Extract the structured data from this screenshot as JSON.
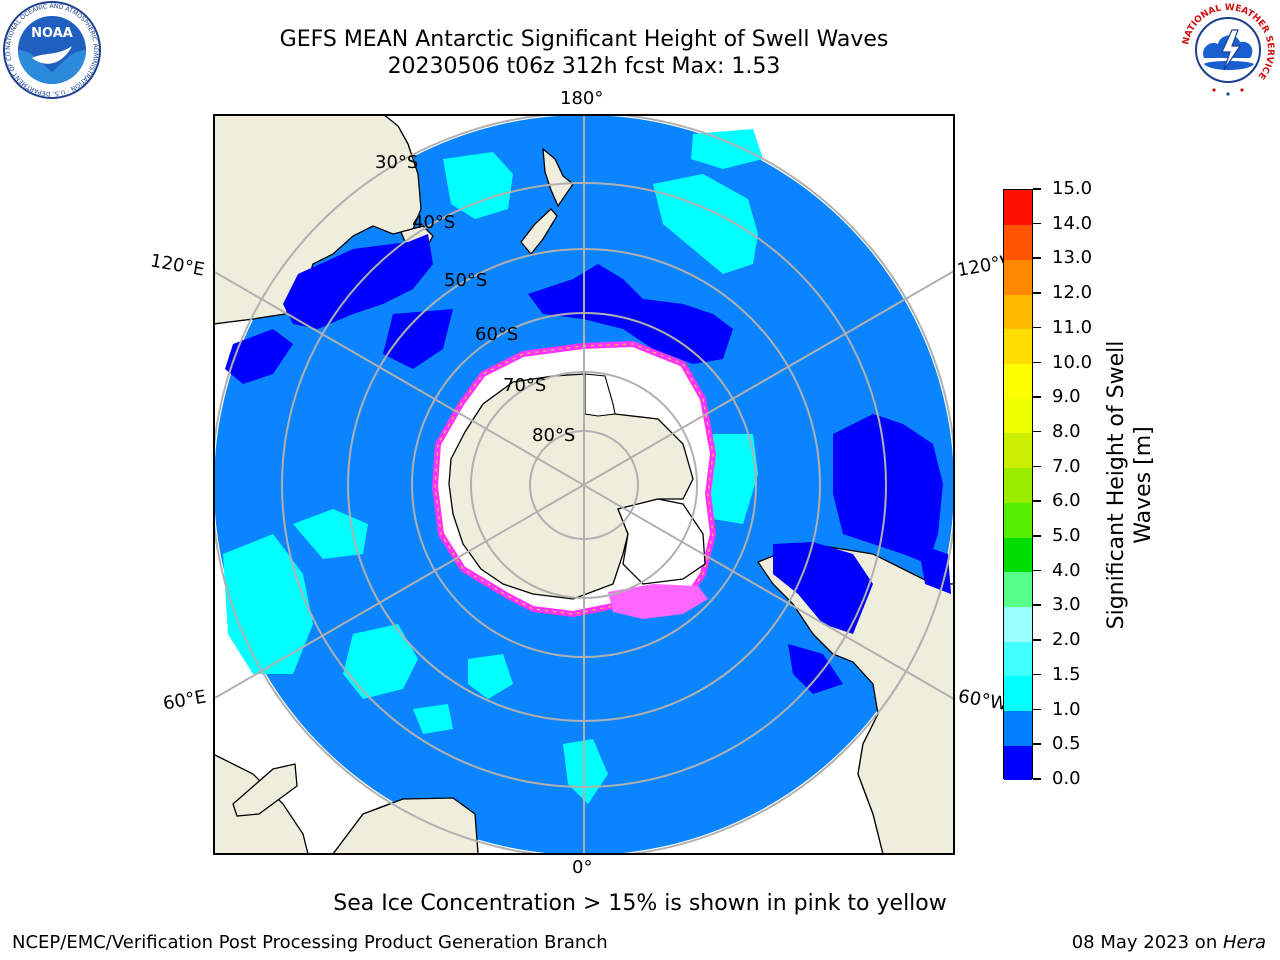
{
  "header": {
    "title_line1": "GEFS MEAN Antarctic Significant Height of Swell Waves",
    "title_line2": "20230506 t06z 312h fcst   Max: 1.53"
  },
  "logos": {
    "left": {
      "name": "noaa-logo",
      "text": "NOAA",
      "ring_text": "NATIONAL OCEANIC AND ATMOSPHERIC ADMINISTRATION · U.S. DEPARTMENT OF COMMERCE"
    },
    "right": {
      "name": "nws-logo",
      "ring_text": "NATIONAL WEATHER SERVICE"
    }
  },
  "map": {
    "projection": "south polar stereographic",
    "longitude_labels": {
      "top": "180°",
      "bottom": "0°",
      "upper_left": "120°E",
      "upper_right": "120°W",
      "lower_left": "60°E",
      "lower_right": "60°W"
    },
    "latitude_labels": [
      "30°S",
      "40°S",
      "50°S",
      "60°S",
      "70°S",
      "80°S"
    ],
    "colors": {
      "land": "#efeedd",
      "ocean_base": "#0a84ff",
      "low_swell": "#0000ff",
      "mid_swell": "#00ffff",
      "ice": "#ffffff",
      "ice_edge": "#ff33ff",
      "grid": "#b0b0b0"
    }
  },
  "colorbar": {
    "title": "Significant Height of Swell Waves [m]",
    "ticks": [
      "0.0",
      "0.5",
      "1.0",
      "1.5",
      "2.0",
      "3.0",
      "4.0",
      "5.0",
      "6.0",
      "7.0",
      "8.0",
      "9.0",
      "10.0",
      "11.0",
      "12.0",
      "13.0",
      "14.0",
      "15.0"
    ],
    "colors": [
      "#0000ff",
      "#0080ff",
      "#00ffff",
      "#40ffff",
      "#99ffff",
      "#55ff88",
      "#00dd00",
      "#55ee00",
      "#99ee00",
      "#ccee00",
      "#eeff00",
      "#ffff00",
      "#ffdd00",
      "#ffbb00",
      "#ff8800",
      "#ff5500",
      "#ff1100"
    ]
  },
  "caption": "Sea Ice Concentration > 15% is shown in pink to yellow",
  "footer": {
    "left": "NCEP/EMC/Verification Post Processing Product Generation Branch",
    "right_prefix": "08 May 2023 on ",
    "right_machine": "Hera"
  }
}
